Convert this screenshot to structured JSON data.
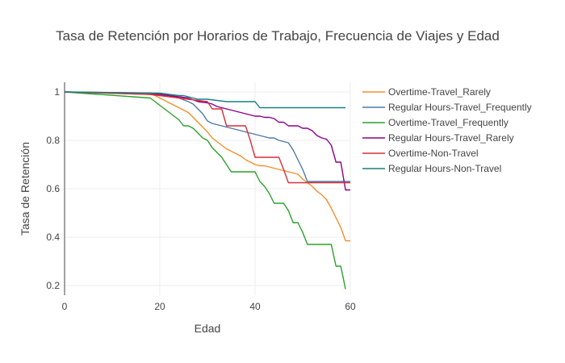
{
  "chart_data": {
    "type": "line",
    "title": "Tasa de Retención por Horarios de Trabajo, Frecuencia de Viajes y Edad",
    "xlabel": "Edad",
    "ylabel": "Tasa de Retención",
    "xlim": [
      0,
      60
    ],
    "ylim": [
      0.16,
      1.04
    ],
    "xticks": [
      0,
      20,
      40,
      60
    ],
    "yticks": [
      0.2,
      0.4,
      0.6,
      0.8,
      1
    ],
    "grid": true,
    "legend_position": "right",
    "series": [
      {
        "name": "Overtime-Travel_Rarely",
        "color": "#f28e2b",
        "x": [
          0,
          18,
          19,
          20,
          21,
          22,
          23,
          24,
          25,
          26,
          27,
          28,
          29,
          30,
          31,
          32,
          33,
          34,
          35,
          36,
          37,
          38,
          39,
          40,
          41,
          42,
          43,
          44,
          45,
          46,
          47,
          48,
          49,
          50,
          51,
          52,
          53,
          54,
          55,
          56,
          57,
          58,
          59,
          60
        ],
        "y": [
          1.0,
          0.99,
          0.985,
          0.975,
          0.965,
          0.955,
          0.945,
          0.935,
          0.925,
          0.915,
          0.895,
          0.875,
          0.855,
          0.835,
          0.81,
          0.795,
          0.78,
          0.765,
          0.755,
          0.745,
          0.735,
          0.72,
          0.71,
          0.7,
          0.695,
          0.695,
          0.69,
          0.685,
          0.68,
          0.675,
          0.67,
          0.665,
          0.66,
          0.64,
          0.625,
          0.61,
          0.59,
          0.575,
          0.555,
          0.52,
          0.48,
          0.44,
          0.385,
          0.385
        ]
      },
      {
        "name": "Regular Hours-Travel_Frequently",
        "color": "#4e79a7",
        "x": [
          0,
          20,
          22,
          24,
          26,
          27,
          28,
          29,
          30,
          31,
          32,
          33,
          34,
          35,
          36,
          37,
          38,
          39,
          40,
          41,
          42,
          43,
          44,
          45,
          46,
          47,
          48,
          49,
          50,
          51,
          52,
          53,
          54,
          55,
          56,
          57,
          58,
          59,
          60
        ],
        "y": [
          1.0,
          0.99,
          0.985,
          0.975,
          0.96,
          0.95,
          0.93,
          0.91,
          0.88,
          0.87,
          0.865,
          0.86,
          0.855,
          0.85,
          0.845,
          0.84,
          0.835,
          0.83,
          0.825,
          0.82,
          0.815,
          0.81,
          0.81,
          0.8,
          0.795,
          0.79,
          0.76,
          0.72,
          0.68,
          0.63,
          0.63,
          0.63,
          0.63,
          0.63,
          0.63,
          0.63,
          0.63,
          0.63,
          0.63
        ]
      },
      {
        "name": "Overtime-Travel_Frequently",
        "color": "#2ca02c",
        "x": [
          0,
          18,
          19,
          20,
          21,
          22,
          23,
          24,
          25,
          26,
          27,
          28,
          29,
          30,
          31,
          32,
          33,
          34,
          35,
          36,
          37,
          38,
          39,
          40,
          41,
          42,
          43,
          44,
          45,
          46,
          47,
          48,
          49,
          50,
          51,
          52,
          53,
          54,
          55,
          56,
          57,
          58,
          59
        ],
        "y": [
          1.0,
          0.975,
          0.96,
          0.945,
          0.93,
          0.915,
          0.9,
          0.885,
          0.86,
          0.86,
          0.85,
          0.83,
          0.81,
          0.8,
          0.77,
          0.75,
          0.73,
          0.7,
          0.67,
          0.67,
          0.67,
          0.67,
          0.67,
          0.67,
          0.63,
          0.61,
          0.58,
          0.54,
          0.54,
          0.54,
          0.51,
          0.46,
          0.46,
          0.42,
          0.37,
          0.37,
          0.37,
          0.37,
          0.37,
          0.37,
          0.28,
          0.28,
          0.185
        ]
      },
      {
        "name": "Regular Hours-Travel_Rarely",
        "color": "#8b008b",
        "x": [
          0,
          18,
          20,
          22,
          24,
          26,
          28,
          30,
          31,
          32,
          33,
          34,
          35,
          36,
          37,
          38,
          39,
          40,
          41,
          42,
          43,
          44,
          45,
          46,
          47,
          48,
          49,
          50,
          51,
          52,
          53,
          54,
          55,
          56,
          57,
          58,
          59,
          60
        ],
        "y": [
          1.0,
          0.995,
          0.99,
          0.985,
          0.98,
          0.975,
          0.96,
          0.955,
          0.95,
          0.94,
          0.935,
          0.93,
          0.925,
          0.92,
          0.915,
          0.91,
          0.905,
          0.9,
          0.9,
          0.895,
          0.895,
          0.89,
          0.875,
          0.875,
          0.86,
          0.86,
          0.86,
          0.85,
          0.85,
          0.84,
          0.82,
          0.81,
          0.805,
          0.78,
          0.71,
          0.71,
          0.595,
          0.595
        ]
      },
      {
        "name": "Overtime-Non-Travel",
        "color": "#d62f3a",
        "x": [
          0,
          18,
          20,
          22,
          24,
          26,
          28,
          30,
          31,
          32,
          33,
          34,
          35,
          36,
          37,
          38,
          39,
          40,
          41,
          42,
          43,
          44,
          45,
          46,
          47,
          48,
          49,
          50,
          51,
          52,
          53,
          54,
          55,
          56,
          57,
          58,
          59,
          60
        ],
        "y": [
          1.0,
          0.99,
          0.985,
          0.98,
          0.975,
          0.97,
          0.965,
          0.96,
          0.93,
          0.93,
          0.93,
          0.86,
          0.86,
          0.86,
          0.86,
          0.86,
          0.8,
          0.73,
          0.73,
          0.73,
          0.73,
          0.73,
          0.73,
          0.68,
          0.625,
          0.625,
          0.625,
          0.625,
          0.625,
          0.625,
          0.625,
          0.625,
          0.625,
          0.625,
          0.625,
          0.625,
          0.625,
          0.625
        ]
      },
      {
        "name": "Regular Hours-Non-Travel",
        "color": "#1a7f80",
        "x": [
          0,
          20,
          22,
          24,
          25,
          26,
          27,
          28,
          30,
          32,
          34,
          36,
          38,
          40,
          41,
          42,
          44,
          46,
          48,
          50,
          52,
          54,
          56,
          58,
          59
        ],
        "y": [
          1.0,
          0.995,
          0.99,
          0.985,
          0.985,
          0.98,
          0.975,
          0.97,
          0.97,
          0.965,
          0.96,
          0.96,
          0.96,
          0.96,
          0.935,
          0.935,
          0.935,
          0.935,
          0.935,
          0.935,
          0.935,
          0.935,
          0.935,
          0.935,
          0.935
        ]
      }
    ]
  }
}
